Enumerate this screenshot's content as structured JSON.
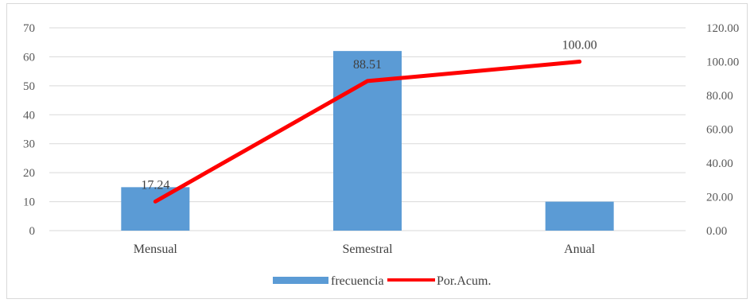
{
  "chart_data": {
    "type": "bar+line",
    "categories": [
      "Mensual",
      "Semestral",
      "Anual"
    ],
    "series": [
      {
        "name": "frecuencia",
        "type": "bar",
        "axis": "left",
        "color": "#5b9bd5",
        "values": [
          15,
          62,
          10
        ]
      },
      {
        "name": "Por.Acum.",
        "type": "line",
        "axis": "right",
        "color": "#ff0000",
        "values": [
          17.24,
          88.51,
          100.0
        ],
        "data_labels": [
          "17.24",
          "88.51",
          "100.00"
        ]
      }
    ],
    "y_left": {
      "min": 0,
      "max": 70,
      "step": 10,
      "tick_labels": [
        "0",
        "10",
        "20",
        "30",
        "40",
        "50",
        "60",
        "70"
      ]
    },
    "y_right": {
      "min": 0,
      "max": 120,
      "step": 20,
      "tick_labels": [
        "0.00",
        "20.00",
        "40.00",
        "60.00",
        "80.00",
        "100.00",
        "120.00"
      ]
    },
    "grid": true,
    "legend_position": "bottom"
  }
}
